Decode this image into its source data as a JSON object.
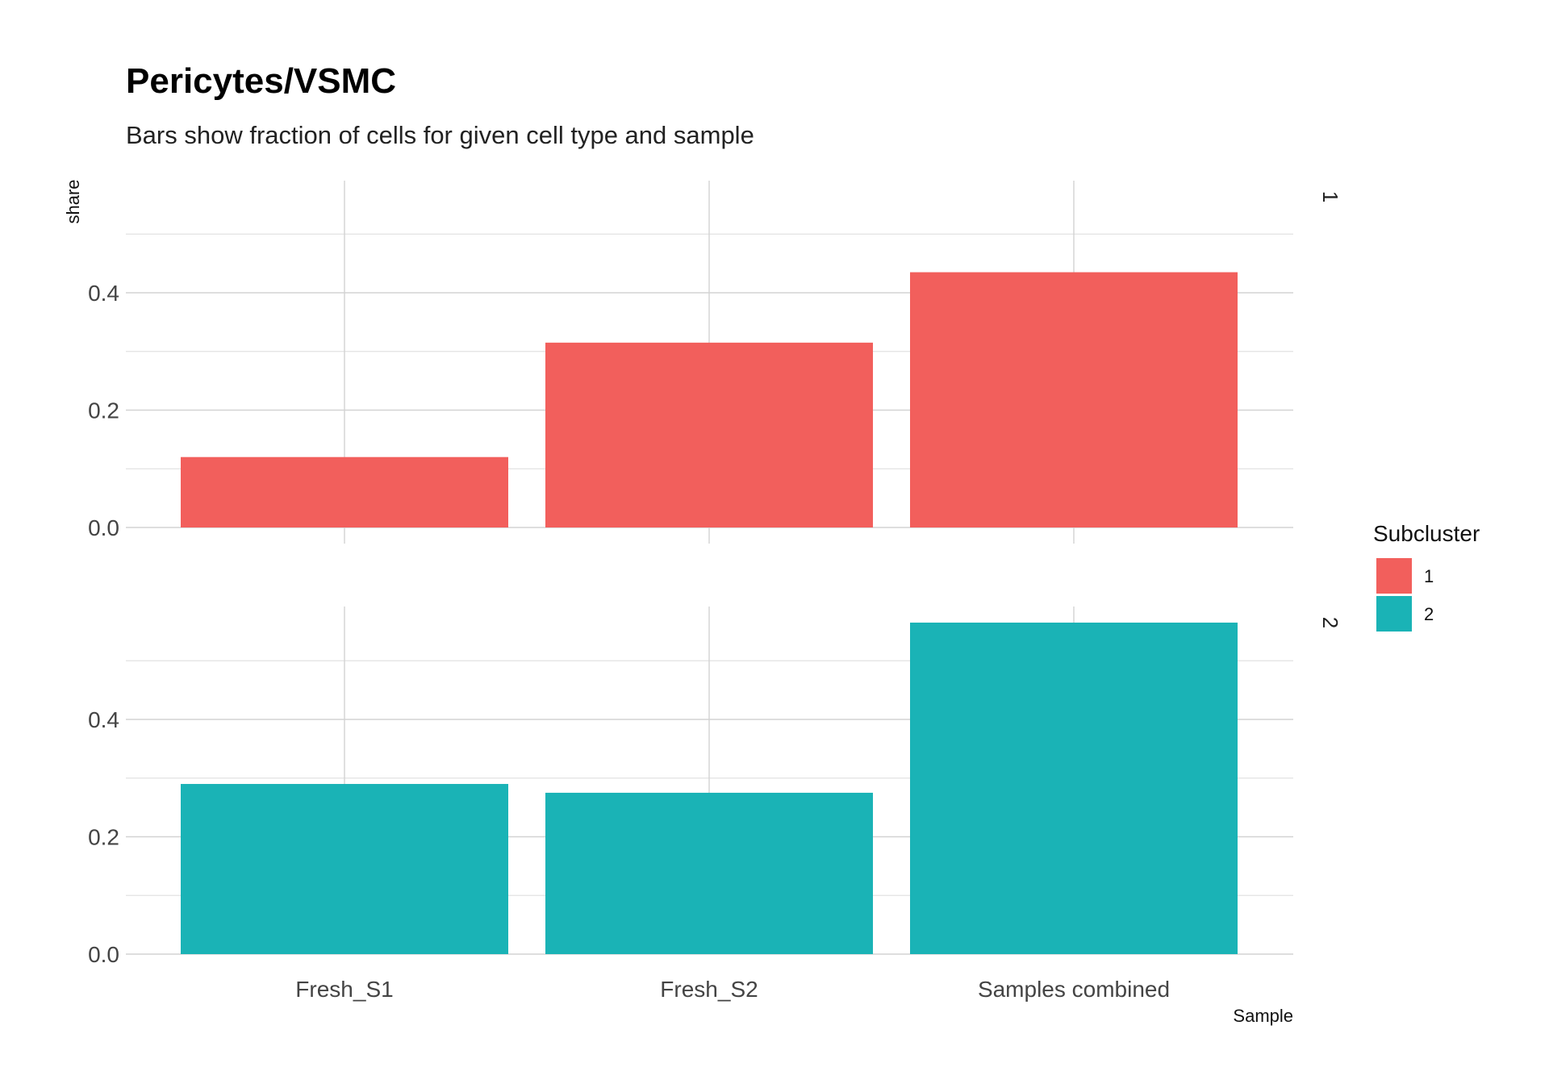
{
  "chart_data": {
    "type": "bar",
    "title": "Pericytes/VSMC",
    "subtitle": "Bars show fraction of cells for given cell type and sample",
    "xlabel": "Sample",
    "ylabel": "share",
    "categories": [
      "Fresh_S1",
      "Fresh_S2",
      "Samples combined"
    ],
    "facets": [
      "1",
      "2"
    ],
    "yticks": [
      "0.0",
      "0.2",
      "0.4"
    ],
    "ylim": [
      0,
      0.58
    ],
    "grid": true,
    "legend": {
      "title": "Subcluster",
      "position": "right",
      "entries": [
        "1",
        "2"
      ]
    },
    "series": [
      {
        "name": "1",
        "facet": "1",
        "color": "#F25F5C",
        "values": [
          0.12,
          0.315,
          0.435
        ]
      },
      {
        "name": "2",
        "facet": "2",
        "color": "#1AB3B6",
        "values": [
          0.29,
          0.275,
          0.565
        ]
      }
    ]
  }
}
